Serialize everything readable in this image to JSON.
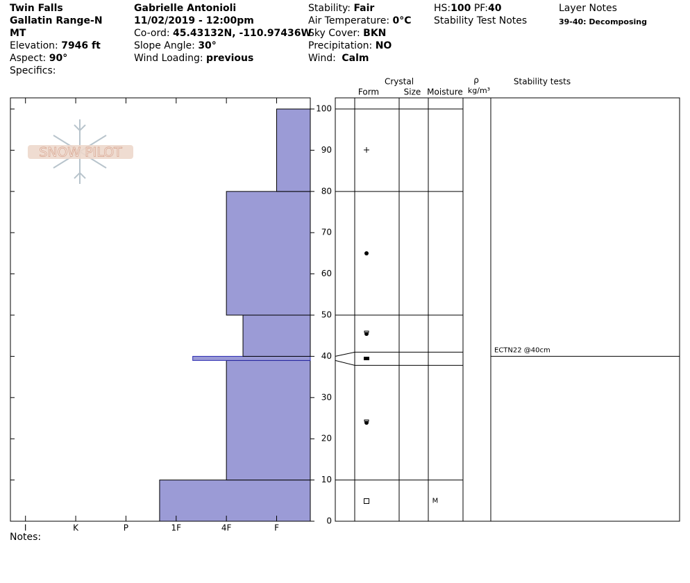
{
  "header": {
    "location": "Twin Falls",
    "range": "Gallatin Range-N",
    "state": "MT",
    "elevation": {
      "label": "Elevation: ",
      "value": "7946 ft"
    },
    "aspect": {
      "label": "Aspect: ",
      "value": "90°"
    },
    "specifics": "Specifics:",
    "observer": "Gabrielle Antonioli",
    "datetime": "11/02/2019 - 12:00pm",
    "coords": {
      "label": "Co-ord: ",
      "value": "45.43132N, -110.97436W"
    },
    "slope": {
      "label": "Slope Angle: ",
      "value": "30°"
    },
    "wind_loading": {
      "label": "Wind Loading: ",
      "value": "previous"
    },
    "stability": {
      "label": "Stability: ",
      "value": "Fair"
    },
    "air_temp": {
      "label": "Air Temperature: ",
      "value": "0°C"
    },
    "sky": {
      "label": "Sky Cover: ",
      "value": "BKN"
    },
    "precip": {
      "label": "Precipitation: ",
      "value": "NO"
    },
    "wind": {
      "label": "Wind: ",
      "value": "Calm"
    },
    "hs": {
      "label": "HS:",
      "value": "100"
    },
    "pf": {
      "label": " PF:",
      "value": "40"
    },
    "stability_test_notes": "Stability Test Notes",
    "layer_notes_title": "Layer Notes",
    "layer_notes": [
      "39-40: Decomposing"
    ]
  },
  "notes": "Notes:",
  "chart_data": {
    "type": "snow_profile",
    "logo": "SNOW PILOT",
    "color": "#9b9bd6",
    "xlim": [
      6.3,
      0.33
    ],
    "xticks": [
      {
        "value": 6,
        "label": "I"
      },
      {
        "value": 5,
        "label": "K"
      },
      {
        "value": 4,
        "label": "P"
      },
      {
        "value": 3,
        "label": "1F"
      },
      {
        "value": 2,
        "label": "4F"
      },
      {
        "value": 1,
        "label": "F"
      }
    ],
    "ylim": [
      0,
      102.7
    ],
    "yticks": [
      0,
      10,
      20,
      30,
      40,
      50,
      60,
      70,
      80,
      90,
      100
    ],
    "layers": [
      {
        "bottom": 0,
        "top": 10,
        "hardness": 3.33,
        "moisture": "M"
      },
      {
        "bottom": 10,
        "top": 39,
        "hardness": 2
      },
      {
        "bottom": 39,
        "top": 40,
        "hardness": 2.67
      },
      {
        "bottom": 40,
        "top": 50,
        "hardness": 1.67
      },
      {
        "bottom": 50,
        "top": 80,
        "hardness": 2
      },
      {
        "bottom": 80,
        "top": 100,
        "hardness": 1
      }
    ],
    "crystal_title": "Crystal",
    "columns": [
      "Form",
      "Size",
      "Moisture"
    ],
    "density_symbol": "ρ",
    "density_unit": "kg/m³",
    "stability_title": "Stability tests",
    "stability_tests": [
      {
        "label": "ECTN22 @40cm",
        "height": 40
      }
    ]
  }
}
